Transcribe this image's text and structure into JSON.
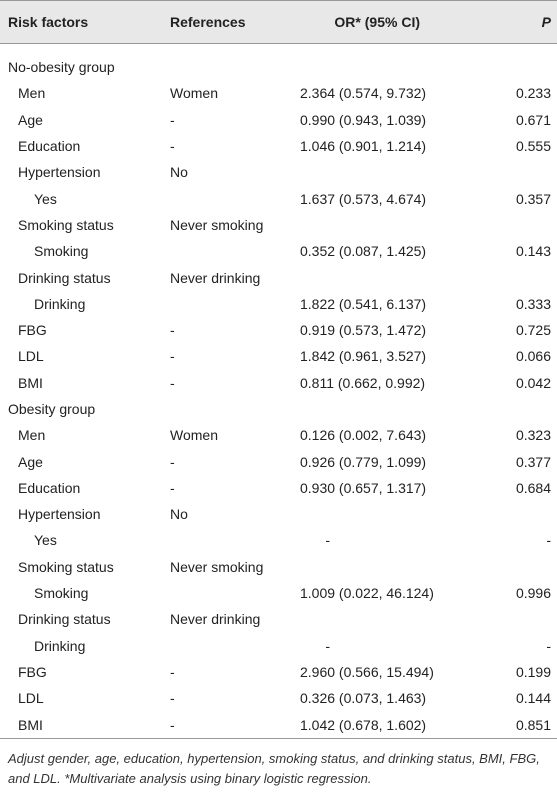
{
  "table": {
    "header": [
      "Risk factors",
      "References",
      "OR* (95% CI)",
      "P"
    ],
    "groups": [
      {
        "label": "No-obesity group",
        "rows": [
          {
            "factor": "Men",
            "reference": "Women",
            "or": "2.364 (0.574, 9.732)",
            "p": "0.233"
          },
          {
            "factor": "Age",
            "reference": "-",
            "or": "0.990 (0.943, 1.039)",
            "p": "0.671"
          },
          {
            "factor": "Education",
            "reference": "-",
            "or": "1.046 (0.901, 1.214)",
            "p": "0.555"
          },
          {
            "factor": "Hypertension",
            "reference": "No",
            "levels": [
              {
                "factor": "Yes",
                "or": "1.637 (0.573, 4.674)",
                "p": "0.357"
              }
            ]
          },
          {
            "factor": "Smoking status",
            "reference": "Never smoking",
            "levels": [
              {
                "factor": "Smoking",
                "or": "0.352 (0.087, 1.425)",
                "p": "0.143"
              }
            ]
          },
          {
            "factor": "Drinking status",
            "reference": "Never drinking",
            "levels": [
              {
                "factor": "Drinking",
                "or": "1.822 (0.541, 6.137)",
                "p": "0.333"
              }
            ]
          },
          {
            "factor": "FBG",
            "reference": "-",
            "or": "0.919 (0.573, 1.472)",
            "p": "0.725"
          },
          {
            "factor": "LDL",
            "reference": "-",
            "or": "1.842 (0.961, 3.527)",
            "p": "0.066"
          },
          {
            "factor": "BMI",
            "reference": "-",
            "or": "0.811 (0.662, 0.992)",
            "p": "0.042"
          }
        ]
      },
      {
        "label": "Obesity group",
        "rows": [
          {
            "factor": "Men",
            "reference": "Women",
            "or": "0.126 (0.002, 7.643)",
            "p": "0.323"
          },
          {
            "factor": "Age",
            "reference": "-",
            "or": "0.926 (0.779, 1.099)",
            "p": "0.377"
          },
          {
            "factor": "Education",
            "reference": "-",
            "or": "0.930 (0.657, 1.317)",
            "p": "0.684"
          },
          {
            "factor": "Hypertension",
            "reference": "No",
            "levels": [
              {
                "factor": "Yes",
                "or": "-",
                "p": "-"
              }
            ]
          },
          {
            "factor": "Smoking status",
            "reference": "Never smoking",
            "levels": [
              {
                "factor": "Smoking",
                "or": "1.009 (0.022, 46.124)",
                "p": "0.996"
              }
            ]
          },
          {
            "factor": "Drinking status",
            "reference": "Never drinking",
            "levels": [
              {
                "factor": "Drinking",
                "or": "-",
                "p": "-"
              }
            ]
          },
          {
            "factor": "FBG",
            "reference": "-",
            "or": "2.960 (0.566, 15.494)",
            "p": "0.199"
          },
          {
            "factor": "LDL",
            "reference": "-",
            "or": "0.326 (0.073, 1.463)",
            "p": "0.144"
          },
          {
            "factor": "BMI",
            "reference": "-",
            "or": "1.042 (0.678, 1.602)",
            "p": "0.851"
          }
        ]
      }
    ],
    "footnote": "Adjust gender, age, education, hypertension, smoking status, and drinking status, BMI, FBG, and LDL. *Multivariate analysis using binary logistic regression."
  }
}
